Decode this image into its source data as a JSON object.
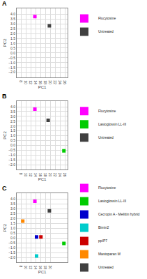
{
  "chart_data": [
    {
      "type": "scatter",
      "title": "A",
      "x_label": "PC1",
      "y_label": "PC2",
      "xlim": [
        6,
        27
      ],
      "ylim": [
        -2.5,
        4.6
      ],
      "xticks": [
        8,
        10,
        12,
        14,
        16,
        18,
        20,
        22,
        24,
        26
      ],
      "yticks": [
        {
          "value": -2.0,
          "label": "−2.0"
        },
        {
          "value": -1.5,
          "label": "−1.5"
        },
        {
          "value": -1.0,
          "label": "−1.0"
        },
        {
          "value": -0.5,
          "label": "−0.5"
        },
        {
          "value": 0.0,
          "label": "0.0"
        },
        0.5,
        {
          "value": 1.0,
          "label": "1.0"
        },
        1.5,
        {
          "value": 2.0,
          "label": "2.0"
        },
        2.5,
        {
          "value": 3.0,
          "label": "3.0"
        },
        3.5,
        {
          "value": 4.0,
          "label": "4.0"
        }
      ],
      "grid": true,
      "legend": "right",
      "marker": "square",
      "series": [
        {
          "name": "Flucytosine",
          "color": "#ff00ff",
          "x": [
            13.5
          ],
          "values": [
            3.75
          ],
          "x_error": [
            0.35
          ],
          "y_error": [
            0.08
          ]
        },
        {
          "name": "Untreated",
          "color": "#404040",
          "x": [
            19.5
          ],
          "values": [
            2.8
          ],
          "x_error": [
            0.25
          ],
          "y_error": [
            0.08
          ]
        }
      ]
    },
    {
      "type": "scatter",
      "title": "B",
      "x_label": "PC1",
      "y_label": "PC2",
      "xlim": [
        6,
        27
      ],
      "ylim": [
        -2.5,
        4.6
      ],
      "xticks": [
        8,
        10,
        12,
        14,
        16,
        18,
        20,
        22,
        24,
        26
      ],
      "yticks": [
        {
          "value": -2.0,
          "label": "−2.0"
        },
        {
          "value": -1.5,
          "label": "−1.5"
        },
        {
          "value": -1.0,
          "label": "−1.0"
        },
        {
          "value": -0.5,
          "label": "−0.5"
        },
        {
          "value": 0.0,
          "label": "0.0"
        },
        0.5,
        {
          "value": 1.0,
          "label": "1.0"
        },
        1.5,
        {
          "value": 2.0,
          "label": "2.0"
        },
        2.5,
        {
          "value": 3.0,
          "label": "3.0"
        },
        3.5,
        {
          "value": 4.0,
          "label": "4.0"
        }
      ],
      "grid": true,
      "legend": "right",
      "marker": "square",
      "series": [
        {
          "name": "Flucytosine",
          "color": "#ff00ff",
          "x": [
            13.5
          ],
          "values": [
            3.75
          ],
          "x_error": [
            0.35
          ],
          "y_error": [
            0.08
          ]
        },
        {
          "name": "Lasioglossin LL-III",
          "color": "#00cc00",
          "x": [
            25.5
          ],
          "values": [
            -0.55
          ],
          "x_error": [
            0.35
          ],
          "y_error": [
            0.08
          ]
        },
        {
          "name": "Untreated",
          "color": "#404040",
          "x": [
            19.0
          ],
          "values": [
            2.6
          ],
          "x_error": [
            0.25
          ],
          "y_error": [
            0.08
          ]
        }
      ]
    },
    {
      "type": "scatter",
      "title": "C",
      "x_label": "PC1",
      "y_label": "PC2",
      "xlim": [
        6,
        27
      ],
      "ylim": [
        -2.5,
        4.6
      ],
      "xticks": [
        8,
        10,
        12,
        14,
        16,
        18,
        20
      ],
      "yticks": [
        {
          "value": -2.0,
          "label": "−2.0"
        },
        {
          "value": -1.5,
          "label": "−1.5"
        },
        {
          "value": -1.0,
          "label": "−1.0"
        },
        {
          "value": -0.5,
          "label": "−0.5"
        },
        {
          "value": 0.0,
          "label": "0.0"
        },
        0.5,
        {
          "value": 1.0,
          "label": "1.0"
        },
        1.5,
        {
          "value": 2.0,
          "label": "2.0"
        },
        2.5,
        {
          "value": 3.0,
          "label": "3.0"
        },
        3.5,
        {
          "value": 4.0,
          "label": "4.0"
        }
      ],
      "grid": true,
      "legend": "right",
      "marker": "square",
      "series": [
        {
          "name": "Flucytosine",
          "color": "#ff00ff",
          "x": [
            13.5
          ],
          "values": [
            3.8
          ],
          "x_error": [
            0.35
          ],
          "y_error": [
            0.08
          ]
        },
        {
          "name": "Lasioglossin LL-III",
          "color": "#00cc00",
          "x": [
            25.5
          ],
          "values": [
            -0.55
          ],
          "x_error": [
            0.35
          ],
          "y_error": [
            0.08
          ]
        },
        {
          "name": "Cecropin A - Melittin hybrid",
          "color": "#0000cc",
          "x": [
            14.2
          ],
          "values": [
            0.1
          ],
          "x_error": [
            0.25
          ],
          "y_error": [
            0.08
          ]
        },
        {
          "name": "Bimin2",
          "color": "#00cccc",
          "x": [
            14.2
          ],
          "values": [
            -1.85
          ],
          "x_error": [
            0.25
          ],
          "y_error": [
            0.08
          ]
        },
        {
          "name": "ppIP7",
          "color": "#cc0000",
          "x": [
            16.0
          ],
          "values": [
            0.1
          ],
          "x_error": [
            0.25
          ],
          "y_error": [
            0.08
          ]
        },
        {
          "name": "Mastoparan M",
          "color": "#ff8800",
          "x": [
            8.5
          ],
          "values": [
            1.75
          ],
          "x_error": [
            0.25
          ],
          "y_error": [
            0.08
          ]
        },
        {
          "name": "Untreated",
          "color": "#404040",
          "x": [
            19.5
          ],
          "values": [
            2.8
          ],
          "x_error": [
            0.25
          ],
          "y_error": [
            0.08
          ]
        }
      ]
    }
  ]
}
